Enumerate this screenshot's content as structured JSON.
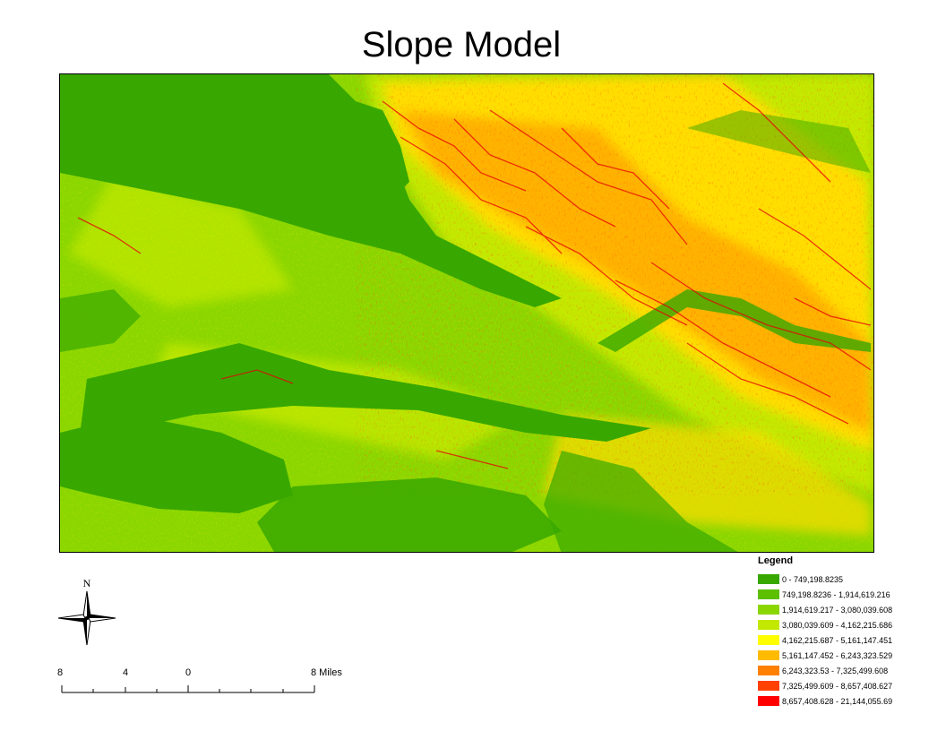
{
  "title": "Slope Model",
  "legend": {
    "title": "Legend",
    "items": [
      {
        "label": "0 - 749,198.8235",
        "color": "#38a800"
      },
      {
        "label": "749,198.8236 - 1,914,619.216",
        "color": "#5cbf00"
      },
      {
        "label": "1,914,619.217 - 3,080,039.608",
        "color": "#8ad600"
      },
      {
        "label": "3,080,039.609 - 4,162,215.686",
        "color": "#c2e800"
      },
      {
        "label": "4,162,215.687 - 5,161,147.451",
        "color": "#ffff00"
      },
      {
        "label": "5,161,147.452 - 6,243,323.529",
        "color": "#ffbb00"
      },
      {
        "label": "6,243,323.53 - 7,325,499.608",
        "color": "#ff8000"
      },
      {
        "label": "7,325,499.609 - 8,657,408.627",
        "color": "#ff4000"
      },
      {
        "label": "8,657,408.628 - 21,144,055.69",
        "color": "#ff0000"
      }
    ]
  },
  "north_arrow": {
    "label": "N",
    "icon": "north-arrow-icon"
  },
  "scale_bar": {
    "labels": [
      "8",
      "4",
      "0",
      "8 Miles"
    ]
  }
}
